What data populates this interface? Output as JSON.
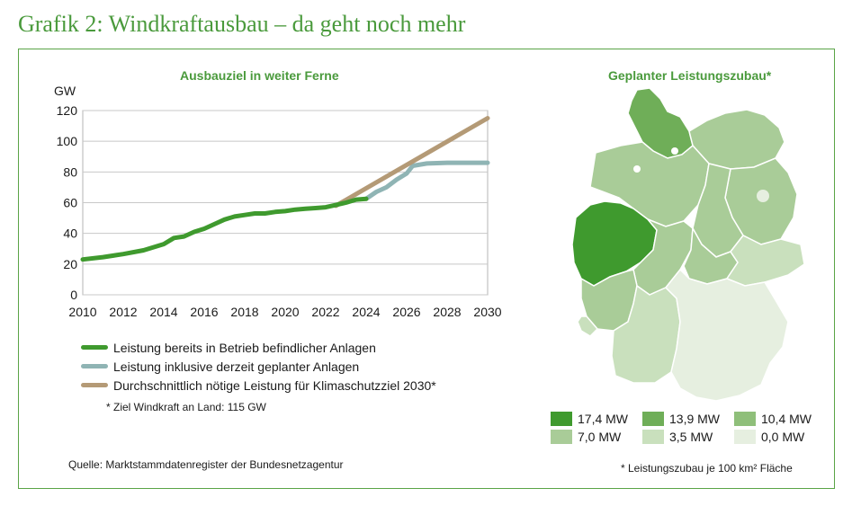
{
  "header": {
    "title": "Grafik 2: Windkraftausbau – da geht noch mehr"
  },
  "chart_data": {
    "type": "line",
    "title": "Ausbauziel in weiter Ferne",
    "ylabel": "GW",
    "xlim": [
      2010,
      2030
    ],
    "ylim": [
      0,
      120
    ],
    "xticks": [
      "2010",
      "2012",
      "2014",
      "2016",
      "2018",
      "2020",
      "2022",
      "2024",
      "2026",
      "2028",
      "2030"
    ],
    "yticks": [
      "0",
      "20",
      "40",
      "60",
      "80",
      "100",
      "120"
    ],
    "grid": "horizontal",
    "series": [
      {
        "name": "Leistung bereits in Betrieb befindlicher Anlagen",
        "color": "#3f9a2e",
        "points": [
          [
            2010,
            23
          ],
          [
            2011,
            24.5
          ],
          [
            2012,
            26.5
          ],
          [
            2013,
            29
          ],
          [
            2014,
            33
          ],
          [
            2014.5,
            37
          ],
          [
            2015,
            38
          ],
          [
            2015.5,
            41
          ],
          [
            2016,
            43
          ],
          [
            2016.5,
            46
          ],
          [
            2017,
            49
          ],
          [
            2017.5,
            51
          ],
          [
            2018,
            52
          ],
          [
            2018.5,
            53
          ],
          [
            2019,
            53
          ],
          [
            2019.5,
            54
          ],
          [
            2020,
            54.5
          ],
          [
            2020.5,
            55.5
          ],
          [
            2021,
            56
          ],
          [
            2021.5,
            56.5
          ],
          [
            2022,
            57
          ],
          [
            2022.5,
            58.5
          ],
          [
            2023,
            60
          ],
          [
            2023.5,
            62
          ],
          [
            2024,
            62.5
          ]
        ]
      },
      {
        "name": "Leistung inklusive derzeit geplanter Anlagen",
        "color": "#8fb4b4",
        "points": [
          [
            2024,
            62.5
          ],
          [
            2024.5,
            67
          ],
          [
            2025,
            70
          ],
          [
            2025.5,
            75
          ],
          [
            2026,
            79
          ],
          [
            2026.3,
            84
          ],
          [
            2027,
            85.5
          ],
          [
            2028,
            86
          ],
          [
            2029,
            86
          ],
          [
            2030,
            86
          ]
        ]
      },
      {
        "name": "Durchschnittlich nötige Leistung für Klimaschutzziel 2030*",
        "color": "#b49a76",
        "points": [
          [
            2022.5,
            58
          ],
          [
            2030,
            115
          ]
        ]
      }
    ],
    "footnote": "* Ziel Windkraft an Land: 115 GW"
  },
  "source": "Quelle: Marktstammdatenregister der Bundesnetzagentur",
  "map": {
    "title": "Geplanter Leistungszubau*",
    "legend": [
      {
        "label": "17,4 MW",
        "color": "#3f9a2e"
      },
      {
        "label": "13,9 MW",
        "color": "#6fae58"
      },
      {
        "label": "10,4 MW",
        "color": "#8fbf7a"
      },
      {
        "label": "7,0 MW",
        "color": "#a9cc98"
      },
      {
        "label": "3,5 MW",
        "color": "#c9e0bd"
      },
      {
        "label": "0,0 MW",
        "color": "#e6efe0"
      }
    ],
    "footnote": "* Leistungszubau je 100 km² Fläche"
  }
}
